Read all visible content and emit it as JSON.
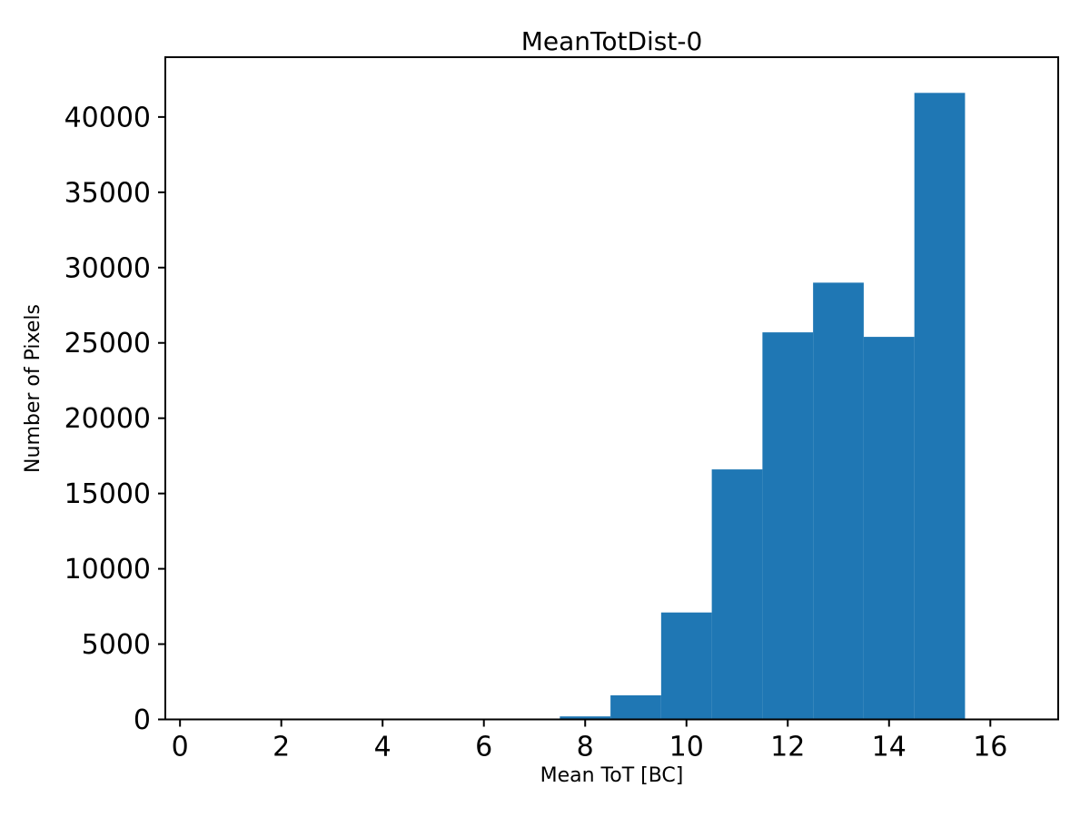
{
  "figure": {
    "title": "MeanTotDist-0",
    "xlabel": "Mean ToT [BC]",
    "ylabel": "Number of Pixels"
  },
  "chart_data": {
    "type": "bar",
    "subtype": "histogram",
    "title": "MeanTotDist-0",
    "xlabel": "Mean ToT [BC]",
    "ylabel": "Number of Pixels",
    "bar_color": "#1f77b4",
    "bin_edges": [
      7.5,
      8.5,
      9.5,
      10.5,
      11.5,
      12.5,
      13.5,
      14.5,
      15.5
    ],
    "bin_centers": [
      8,
      9,
      10,
      11,
      12,
      13,
      14,
      15
    ],
    "counts": [
      200,
      1600,
      7100,
      16600,
      25700,
      29000,
      25400,
      41600
    ],
    "xticks": [
      0,
      2,
      4,
      6,
      8,
      10,
      12,
      14,
      16
    ],
    "yticks": [
      0,
      5000,
      10000,
      15000,
      20000,
      25000,
      30000,
      35000,
      40000
    ],
    "xlim": [
      -0.29,
      17.34
    ],
    "ylim": [
      0,
      43970
    ],
    "grid": false,
    "legend": null
  }
}
